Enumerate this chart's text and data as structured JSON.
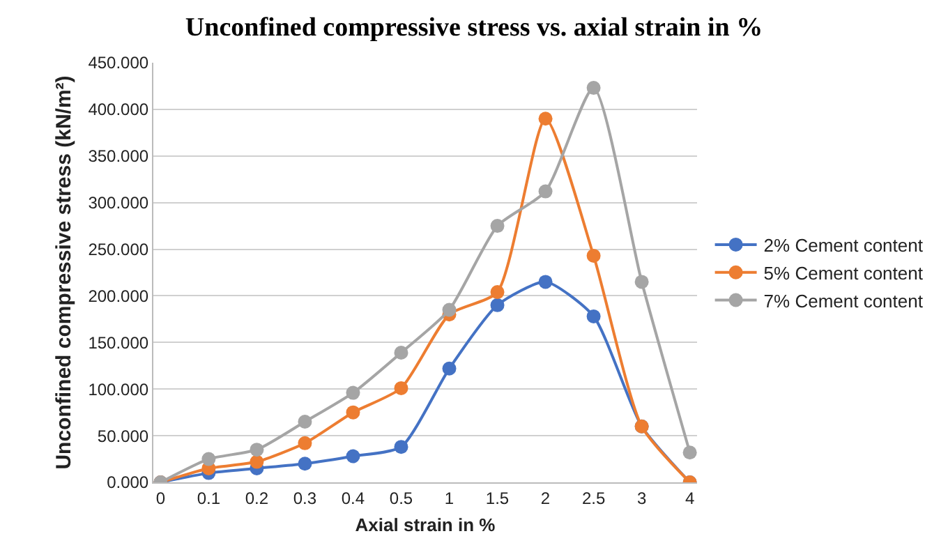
{
  "chart_data": {
    "type": "line",
    "title": "Unconfined compressive stress vs. axial strain in %",
    "xlabel": "Axial strain in %",
    "ylabel": "Unconfined compressive stress (kN/m²)",
    "categories": [
      "0",
      "0.1",
      "0.2",
      "0.3",
      "0.4",
      "0.5",
      "1",
      "1.5",
      "2",
      "2.5",
      "3",
      "4"
    ],
    "series": [
      {
        "name": "2% Cement content",
        "color": "#4472c4",
        "values": [
          0,
          10,
          15,
          20,
          28,
          38,
          122,
          190,
          215,
          178,
          60,
          0
        ]
      },
      {
        "name": "5% Cement content",
        "color": "#ed7d31",
        "values": [
          0,
          15,
          22,
          42,
          75,
          101,
          180,
          204,
          390,
          243,
          60,
          0
        ]
      },
      {
        "name": "7% Cement content",
        "color": "#a5a5a5",
        "values": [
          0,
          25,
          35,
          65,
          96,
          139,
          185,
          275,
          312,
          423,
          215,
          32
        ]
      }
    ],
    "ylim": [
      0,
      450
    ],
    "yticks": [
      {
        "value": 0,
        "label": "0.000"
      },
      {
        "value": 50,
        "label": "50.000"
      },
      {
        "value": 100,
        "label": "100.000"
      },
      {
        "value": 150,
        "label": "150.000"
      },
      {
        "value": 200,
        "label": "200.000"
      },
      {
        "value": 250,
        "label": "250.000"
      },
      {
        "value": 300,
        "label": "300.000"
      },
      {
        "value": 350,
        "label": "350.000"
      },
      {
        "value": 400,
        "label": "400.000"
      },
      {
        "value": 450,
        "label": "450.000"
      }
    ],
    "grid": "y",
    "legend": "right",
    "marker": "circle",
    "line_style": "solid"
  }
}
